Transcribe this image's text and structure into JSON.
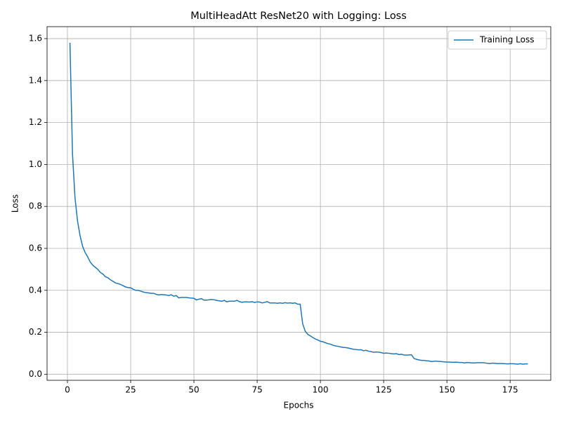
{
  "chart_data": {
    "type": "line",
    "title": "MultiHeadAtt ResNet20 with Logging: Loss",
    "x_label": "Epochs",
    "y_label": "Loss",
    "x": [
      1,
      2,
      3,
      4,
      5,
      6,
      7,
      8,
      9,
      10,
      11,
      12,
      13,
      14,
      15,
      16,
      17,
      18,
      19,
      20,
      21,
      22,
      23,
      24,
      25,
      26,
      27,
      28,
      29,
      30,
      31,
      32,
      33,
      34,
      35,
      36,
      37,
      38,
      39,
      40,
      41,
      42,
      43,
      44,
      45,
      46,
      47,
      48,
      49,
      50,
      51,
      52,
      53,
      54,
      55,
      56,
      57,
      58,
      59,
      60,
      61,
      62,
      63,
      64,
      65,
      66,
      67,
      68,
      69,
      70,
      71,
      72,
      73,
      74,
      75,
      76,
      77,
      78,
      79,
      80,
      81,
      82,
      83,
      84,
      85,
      86,
      87,
      88,
      89,
      90,
      91,
      92,
      93,
      94,
      95,
      96,
      97,
      98,
      99,
      100,
      101,
      102,
      103,
      104,
      105,
      106,
      107,
      108,
      109,
      110,
      111,
      112,
      113,
      114,
      115,
      116,
      117,
      118,
      119,
      120,
      121,
      122,
      123,
      124,
      125,
      126,
      127,
      128,
      129,
      130,
      131,
      132,
      133,
      134,
      135,
      136,
      137,
      138,
      139,
      140,
      141,
      142,
      143,
      144,
      145,
      146,
      147,
      148,
      149,
      150,
      151,
      152,
      153,
      154,
      155,
      156,
      157,
      158,
      159,
      160,
      161,
      162,
      163,
      164,
      165,
      166,
      167,
      168,
      169,
      170,
      171,
      172,
      173,
      174,
      175,
      176,
      177,
      178,
      179,
      180,
      181,
      182
    ],
    "series": [
      {
        "name": "Training Loss",
        "color": "#1f77b4",
        "values": [
          1.58,
          1.05,
          0.84,
          0.73,
          0.66,
          0.61,
          0.58,
          0.56,
          0.535,
          0.52,
          0.51,
          0.5,
          0.485,
          0.478,
          0.465,
          0.46,
          0.45,
          0.443,
          0.435,
          0.432,
          0.428,
          0.422,
          0.416,
          0.413,
          0.412,
          0.405,
          0.4,
          0.4,
          0.396,
          0.392,
          0.389,
          0.388,
          0.386,
          0.386,
          0.381,
          0.378,
          0.38,
          0.379,
          0.378,
          0.375,
          0.379,
          0.372,
          0.375,
          0.364,
          0.366,
          0.366,
          0.366,
          0.364,
          0.363,
          0.362,
          0.354,
          0.358,
          0.36,
          0.353,
          0.353,
          0.355,
          0.356,
          0.355,
          0.352,
          0.35,
          0.348,
          0.352,
          0.345,
          0.348,
          0.348,
          0.348,
          0.352,
          0.346,
          0.343,
          0.345,
          0.345,
          0.344,
          0.346,
          0.342,
          0.345,
          0.344,
          0.34,
          0.343,
          0.346,
          0.34,
          0.34,
          0.34,
          0.338,
          0.34,
          0.338,
          0.341,
          0.339,
          0.34,
          0.338,
          0.34,
          0.334,
          0.334,
          0.24,
          0.205,
          0.19,
          0.183,
          0.175,
          0.168,
          0.163,
          0.157,
          0.155,
          0.15,
          0.146,
          0.143,
          0.138,
          0.135,
          0.133,
          0.13,
          0.128,
          0.127,
          0.125,
          0.122,
          0.119,
          0.118,
          0.116,
          0.117,
          0.112,
          0.114,
          0.11,
          0.108,
          0.105,
          0.106,
          0.105,
          0.103,
          0.1,
          0.101,
          0.1,
          0.098,
          0.097,
          0.098,
          0.094,
          0.095,
          0.092,
          0.091,
          0.092,
          0.093,
          0.075,
          0.071,
          0.068,
          0.066,
          0.066,
          0.064,
          0.063,
          0.06,
          0.062,
          0.062,
          0.061,
          0.06,
          0.059,
          0.058,
          0.058,
          0.057,
          0.057,
          0.057,
          0.056,
          0.056,
          0.054,
          0.056,
          0.055,
          0.054,
          0.054,
          0.055,
          0.055,
          0.055,
          0.054,
          0.052,
          0.051,
          0.053,
          0.052,
          0.051,
          0.051,
          0.051,
          0.05,
          0.049,
          0.05,
          0.05,
          0.049,
          0.048,
          0.05,
          0.048,
          0.049,
          0.049
        ]
      }
    ],
    "xlim": [
      -8.05,
      191.05
    ],
    "ylim": [
      -0.029,
      1.657
    ],
    "xticks": [
      0,
      25,
      50,
      75,
      100,
      125,
      150,
      175
    ],
    "yticks": [
      {
        "value": 0,
        "label": "0.0"
      },
      0.2,
      0.4,
      0.6,
      0.8,
      {
        "value": 1,
        "label": "1.0"
      },
      1.2,
      1.4,
      1.6
    ],
    "grid": true,
    "legend": "upper right"
  }
}
